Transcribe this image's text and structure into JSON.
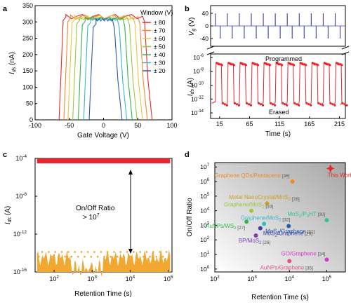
{
  "chart_data": [
    {
      "panel": "a",
      "type": "line",
      "xlabel": "Gate Voltage (V)",
      "ylabel_main": "I",
      "ylabel_sub": "ds",
      "ylabel_unit": " (nA)",
      "xlim": [
        -100,
        100
      ],
      "ylim": [
        0,
        350
      ],
      "xticks": [
        "-100",
        "-50",
        "0",
        "50",
        "100"
      ],
      "yticks": [
        "0",
        "50",
        "100",
        "150",
        "200",
        "250",
        "300",
        "350"
      ],
      "legend_title": "Window (V)",
      "series": [
        {
          "name": "± 80",
          "color": "#e8272c",
          "left": -55,
          "right": 57
        },
        {
          "name": "± 70",
          "color": "#f08a28",
          "left": -48,
          "right": 50
        },
        {
          "name": "± 60",
          "color": "#e9c43a",
          "left": -42,
          "right": 43
        },
        {
          "name": "± 50",
          "color": "#9dc63d",
          "left": -35,
          "right": 35
        },
        {
          "name": "± 40",
          "color": "#35b44a",
          "left": -27,
          "right": 28
        },
        {
          "name": "± 30",
          "color": "#36b9c9",
          "left": -19,
          "right": 20
        },
        {
          "name": "± 20",
          "color": "#2b5aa8",
          "left": -11,
          "right": 13
        }
      ]
    },
    {
      "panel": "b",
      "type": "line",
      "top_ylabel_main": "V",
      "top_ylabel_sub": "g",
      "top_ylabel_unit": " (V)",
      "top_yticks": [
        "40",
        "0",
        "-40"
      ],
      "bottom_ylabel_main": "I",
      "bottom_ylabel_sub": "ds",
      "bottom_ylabel_unit": " (A)",
      "bottom_yticks": [
        "10",
        "10",
        "10",
        "10",
        "10"
      ],
      "bottom_ytick_exps": [
        "-6",
        "-8",
        "-10",
        "-12",
        "-14"
      ],
      "xlabel": "Time (s)",
      "xlim": [
        0,
        225
      ],
      "xticks": [
        15,
        65,
        115,
        165,
        215
      ],
      "pulse_times": [
        15,
        35,
        55,
        75,
        95,
        115,
        135,
        155,
        175,
        195,
        215
      ],
      "program_value_exp": -6.8,
      "erase_value_exp": -12.6,
      "annotations": [
        "Programmed",
        "Erased"
      ],
      "color": "#e8272c",
      "pulse_color": "#3b3fa6"
    },
    {
      "panel": "c",
      "type": "scatter",
      "xlabel": "Retention Time (s)",
      "ylabel_main": "I",
      "ylabel_sub": "ds",
      "ylabel_unit": " (A)",
      "xlim_exp": [
        1.5,
        5.1
      ],
      "ylim_exp": [
        -16,
        -4
      ],
      "xticks": [
        "10",
        "10",
        "10",
        "10"
      ],
      "xtick_exps": [
        "2",
        "3",
        "4",
        "5"
      ],
      "yticks": [
        "10",
        "10",
        "10",
        "10"
      ],
      "ytick_exps": [
        "-4",
        "-8",
        "-12",
        "-16"
      ],
      "on_level_exp": -4.3,
      "off_level_exp": -14.5,
      "on_color": "#e8272c",
      "off_color": "#f0a830",
      "annotation_line1": "On/Off Ratio",
      "annotation_line2": "> 10",
      "annotation_line2_exp": "7"
    },
    {
      "panel": "d",
      "type": "scatter",
      "xlabel": "Retention Time (s)",
      "ylabel": "On/Off Ratio",
      "xlim_exp": [
        2,
        5.5
      ],
      "ylim_exp": [
        -0.2,
        7.3
      ],
      "xticks": [
        "10",
        "10",
        "10",
        "10"
      ],
      "xtick_exps": [
        "2",
        "3",
        "4",
        "5"
      ],
      "yticks": [
        "10",
        "10",
        "10",
        "10",
        "10",
        "10",
        "10",
        "10"
      ],
      "ytick_exps": [
        "0",
        "1",
        "2",
        "3",
        "4",
        "5",
        "6",
        "7"
      ],
      "points": [
        {
          "label": "This Work",
          "ref": "",
          "x_exp": 5.1,
          "y_exp": 6.9,
          "color": "#e8272c",
          "marker": "star"
        },
        {
          "label": "Graphene QDs/Pentacene",
          "ref": "[36]",
          "x_exp": 4.08,
          "y_exp": 6.0,
          "color": "#f08a28",
          "marker": "circle"
        },
        {
          "label": "Metal NanoCrystal/MoS",
          "label_sub": "2",
          "ref": "[28]",
          "x_exp": 3.4,
          "y_exp": 4.5,
          "color": "#c9a227",
          "marker": "circle"
        },
        {
          "label": "Graphene/MoS",
          "label_sub": "2",
          "ref": "[33]",
          "x_exp": 2.98,
          "y_exp": 4.0,
          "color": "#9dc63d",
          "marker": "circle"
        },
        {
          "label": "AuNPs/WS",
          "label_sub": "2",
          "ref": "[27]",
          "x_exp": 2.85,
          "y_exp": 3.25,
          "color": "#35b44a",
          "marker": "circle"
        },
        {
          "label": "Graphene/MoS",
          "label_sub": "2",
          "ref": "[32]",
          "x_exp": 3.32,
          "y_exp": 3.1,
          "color": "#36b9c9",
          "marker": "circle"
        },
        {
          "label": "MoS",
          "label_sub": "2",
          "label_suffix": "/P",
          "label_sub2": "3",
          "label_suffix2": "HT",
          "ref": "[30]",
          "x_exp": 5.0,
          "y_exp": 3.35,
          "color": "#35c48a",
          "marker": "circle"
        },
        {
          "label": "MoS",
          "label_sub": "2",
          "label_suffix": "/Graphene",
          "ref": "[31]",
          "x_exp": 3.98,
          "y_exp": 2.95,
          "color": "#2b5aa8",
          "marker": "circle"
        },
        {
          "label": "MoS",
          "label_sub": "2",
          "label_suffix": "/Graphene",
          "ref": "[29]",
          "x_exp": 3.22,
          "y_exp": 2.8,
          "color": "#3b3fa6",
          "marker": "circle"
        },
        {
          "label": "BP/MoS",
          "label_sub": "2",
          "ref": "[26]",
          "x_exp": 3.1,
          "y_exp": 2.3,
          "color": "#7b3fb0",
          "marker": "circle"
        },
        {
          "label": "GO/Graphene",
          "ref": "[34]",
          "x_exp": 5.0,
          "y_exp": 0.65,
          "color": "#d63ac8",
          "marker": "circle"
        },
        {
          "label": "AuNPs/Graphene",
          "ref": "[35]",
          "x_exp": 4.0,
          "y_exp": 0.55,
          "color": "#e8508a",
          "marker": "circle"
        }
      ]
    }
  ],
  "panel_labels": [
    "a",
    "b",
    "c",
    "d"
  ]
}
